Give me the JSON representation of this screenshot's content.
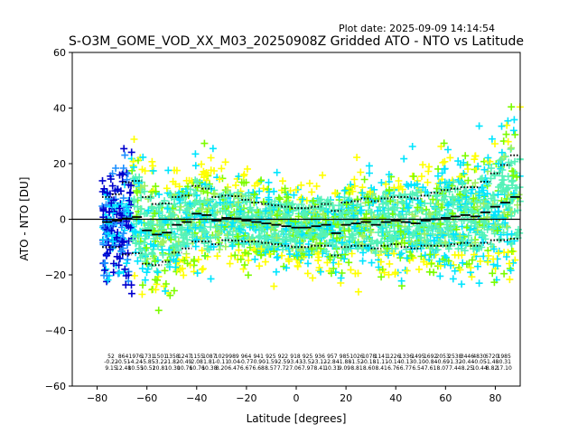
{
  "plot_date": "Plot date: 2025-09-09 14:14:54",
  "chart_data": {
    "type": "scatter",
    "title": "S-O3M_GOME_VOD_XX_M03_20250908Z Gridded ATO - NTO vs Latitude",
    "xlabel": "Latitude [degrees]",
    "ylabel": "ATO - NTO [DU]",
    "xlim": [
      -90,
      90
    ],
    "ylim": [
      -60,
      60
    ],
    "xticks": [
      -80,
      -60,
      -40,
      -20,
      0,
      20,
      40,
      60,
      80
    ],
    "yticks": [
      -60,
      -40,
      -20,
      0,
      20,
      40,
      60
    ],
    "grid": false,
    "zero_line": 0,
    "marker": "+",
    "point_colors": [
      "#0000cd",
      "#1e90ff",
      "#00e5ff",
      "#54f2b8",
      "#7cfc00",
      "#a0f060",
      "#ffff00",
      "#ffd000",
      "#ffa500"
    ],
    "bin_means": [
      {
        "lat": -76,
        "mean": -1.0,
        "std": 9.0
      },
      {
        "lat": -72,
        "mean": -0.5,
        "std": 9.5
      },
      {
        "lat": -68,
        "mean": 0.3,
        "std": 13.0
      },
      {
        "lat": -64,
        "mean": 0.8,
        "std": 13.0
      },
      {
        "lat": -60,
        "mean": -4.0,
        "std": 12.0
      },
      {
        "lat": -56,
        "mean": -5.5,
        "std": 11.0
      },
      {
        "lat": -52,
        "mean": -4.8,
        "std": 10.5
      },
      {
        "lat": -48,
        "mean": -2.0,
        "std": 10.0
      },
      {
        "lat": -44,
        "mean": -1.0,
        "std": 9.5
      },
      {
        "lat": -40,
        "mean": 2.0,
        "std": 10.0
      },
      {
        "lat": -36,
        "mean": 1.5,
        "std": 9.5
      },
      {
        "lat": -32,
        "mean": -0.5,
        "std": 8.5
      },
      {
        "lat": -28,
        "mean": 0.5,
        "std": 8.0
      },
      {
        "lat": -24,
        "mean": 0.3,
        "std": 8.0
      },
      {
        "lat": -20,
        "mean": -0.5,
        "std": 7.5
      },
      {
        "lat": -16,
        "mean": -1.0,
        "std": 7.0
      },
      {
        "lat": -12,
        "mean": -1.5,
        "std": 7.0
      },
      {
        "lat": -8,
        "mean": -2.0,
        "std": 7.0
      },
      {
        "lat": -4,
        "mean": -2.5,
        "std": 7.0
      },
      {
        "lat": 0,
        "mean": -3.0,
        "std": 7.0
      },
      {
        "lat": 4,
        "mean": -3.0,
        "std": 7.0
      },
      {
        "lat": 8,
        "mean": -2.5,
        "std": 7.0
      },
      {
        "lat": 12,
        "mean": -2.0,
        "std": 7.5
      },
      {
        "lat": 16,
        "mean": -5.0,
        "std": 8.0
      },
      {
        "lat": 20,
        "mean": -2.0,
        "std": 8.0
      },
      {
        "lat": 24,
        "mean": -1.5,
        "std": 8.0
      },
      {
        "lat": 28,
        "mean": -1.0,
        "std": 8.5
      },
      {
        "lat": 32,
        "mean": -2.0,
        "std": 8.5
      },
      {
        "lat": 36,
        "mean": -1.0,
        "std": 8.5
      },
      {
        "lat": 40,
        "mean": -0.5,
        "std": 8.5
      },
      {
        "lat": 44,
        "mean": -1.0,
        "std": 9.0
      },
      {
        "lat": 48,
        "mean": -1.5,
        "std": 9.0
      },
      {
        "lat": 52,
        "mean": -0.5,
        "std": 9.0
      },
      {
        "lat": 56,
        "mean": 0.0,
        "std": 9.5
      },
      {
        "lat": 60,
        "mean": 0.5,
        "std": 10.0
      },
      {
        "lat": 64,
        "mean": 1.0,
        "std": 10.0
      },
      {
        "lat": 68,
        "mean": 1.5,
        "std": 10.0
      },
      {
        "lat": 72,
        "mean": 1.0,
        "std": 10.5
      },
      {
        "lat": 76,
        "mean": 2.5,
        "std": 11.0
      },
      {
        "lat": 80,
        "mean": 4.5,
        "std": 12.0
      },
      {
        "lat": 84,
        "mean": 6.0,
        "std": 13.5
      },
      {
        "lat": 88,
        "mean": 8.0,
        "std": 15.0
      }
    ],
    "bin_stats": [
      {
        "lat": -74,
        "n": "52",
        "mean": "-0.22",
        "std": "9.15"
      },
      {
        "lat": -70,
        "n": "864",
        "mean": "-0.51",
        "std": "12.48"
      },
      {
        "lat": -66,
        "n": "1976",
        "mean": "-4.24",
        "std": "10.55"
      },
      {
        "lat": -62,
        "n": "1731",
        "mean": "-5.85",
        "std": "10.52"
      },
      {
        "lat": -58,
        "n": "1501",
        "mean": "-3.22",
        "std": "10.81"
      },
      {
        "lat": -54,
        "n": "1358",
        "mean": "-1.82",
        "std": "10.30"
      },
      {
        "lat": -50,
        "n": "1247",
        "mean": "-0.49",
        "std": "10.76"
      },
      {
        "lat": -46,
        "n": "1155",
        "mean": "2.08",
        "std": "10.76"
      },
      {
        "lat": -42,
        "n": "1087",
        "mean": "1.81",
        "std": "10.38"
      },
      {
        "lat": -38,
        "n": "1029",
        "mean": "-0.11",
        "std": "8.20"
      },
      {
        "lat": -34,
        "n": "989",
        "mean": "0.04",
        "std": "6.47"
      },
      {
        "lat": -30,
        "n": "964",
        "mean": "-0.77",
        "std": "6.67"
      },
      {
        "lat": -26,
        "n": "941",
        "mean": "-0.90",
        "std": "6.68"
      },
      {
        "lat": -22,
        "n": "925",
        "mean": "-1.59",
        "std": "8.57"
      },
      {
        "lat": -18,
        "n": "922",
        "mean": "-2.59",
        "std": "7.72"
      },
      {
        "lat": -14,
        "n": "918",
        "mean": "-3.43",
        "std": "7.06"
      },
      {
        "lat": -10,
        "n": "925",
        "mean": "-3.52",
        "std": "7.97"
      },
      {
        "lat": -6,
        "n": "936",
        "mean": "-3.12",
        "std": "8.41"
      },
      {
        "lat": -2,
        "n": "957",
        "mean": "-2.84",
        "std": "10.31"
      },
      {
        "lat": 2,
        "n": "985",
        "mean": "-1.88",
        "std": "9.09"
      },
      {
        "lat": 6,
        "n": "1026",
        "mean": "-1.52",
        "std": "8.81"
      },
      {
        "lat": 10,
        "n": "1078",
        "mean": "-0.18",
        "std": "8.60"
      },
      {
        "lat": 14,
        "n": "1141",
        "mean": "-1.11",
        "std": "8.41"
      },
      {
        "lat": 18,
        "n": "1226",
        "mean": "-0.14",
        "std": "6.76"
      },
      {
        "lat": 22,
        "n": "1336",
        "mean": "-0.13",
        "std": "6.77"
      },
      {
        "lat": 26,
        "n": "1495",
        "mean": "-0.10",
        "std": "6.54"
      },
      {
        "lat": 30,
        "n": "1692",
        "mean": "-0.84",
        "std": "7.61"
      },
      {
        "lat": 34,
        "n": "2053",
        "mean": "-0.69",
        "std": "8.07"
      },
      {
        "lat": 38,
        "n": "2538",
        "mean": "-1.32",
        "std": "7.44"
      },
      {
        "lat": 42,
        "n": "3446",
        "mean": "-0.44",
        "std": "8.25"
      },
      {
        "lat": 46,
        "n": "4830",
        "mean": "-0.05",
        "std": "10.44"
      },
      {
        "lat": 50,
        "n": "6720",
        "mean": "-1.48",
        "std": "8.82"
      },
      {
        "lat": 54,
        "n": "1985",
        "mean": "-0.31",
        "std": "17.10"
      }
    ]
  }
}
